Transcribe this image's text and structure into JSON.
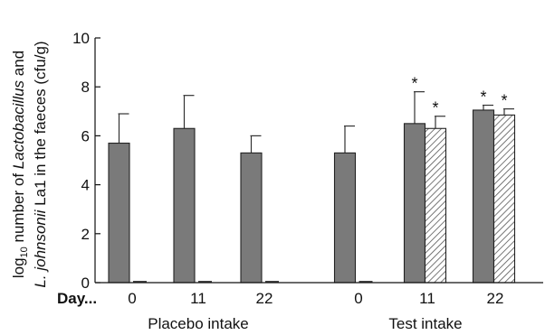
{
  "chart_data": {
    "type": "bar",
    "ylabel_line1_pre": "log",
    "ylabel_line1_sub": "10",
    "ylabel_line1_mid": " number of ",
    "ylabel_line1_italic": "Lactobacillus",
    "ylabel_line1_post": " and",
    "ylabel_line2_italic": "L. johnsonii",
    "ylabel_line2_post": " La1 in the faeces (cfu/g)",
    "ylim": [
      0,
      10
    ],
    "yticks": [
      0,
      2,
      4,
      6,
      8,
      10
    ],
    "x_prefix": "Day...",
    "groups": [
      {
        "label": "Placebo intake",
        "days": [
          "0",
          "11",
          "22"
        ]
      },
      {
        "label": "Test intake",
        "days": [
          "0",
          "11",
          "22"
        ]
      }
    ],
    "series": [
      {
        "style": "solid",
        "color": "#7a7a7a",
        "values": [
          5.7,
          6.3,
          5.3,
          5.3,
          6.5,
          7.05
        ],
        "errors": [
          1.2,
          1.35,
          0.7,
          1.1,
          1.3,
          0.2
        ],
        "significant": [
          false,
          false,
          false,
          false,
          true,
          true
        ]
      },
      {
        "style": "hatched",
        "color": "#ffffff",
        "values": [
          0,
          0,
          0,
          0,
          6.3,
          6.85
        ],
        "errors": [
          0,
          0,
          0,
          0,
          0.5,
          0.25
        ],
        "significant": [
          false,
          false,
          false,
          false,
          true,
          true
        ]
      }
    ],
    "significance_marker": "*",
    "grid": false
  }
}
